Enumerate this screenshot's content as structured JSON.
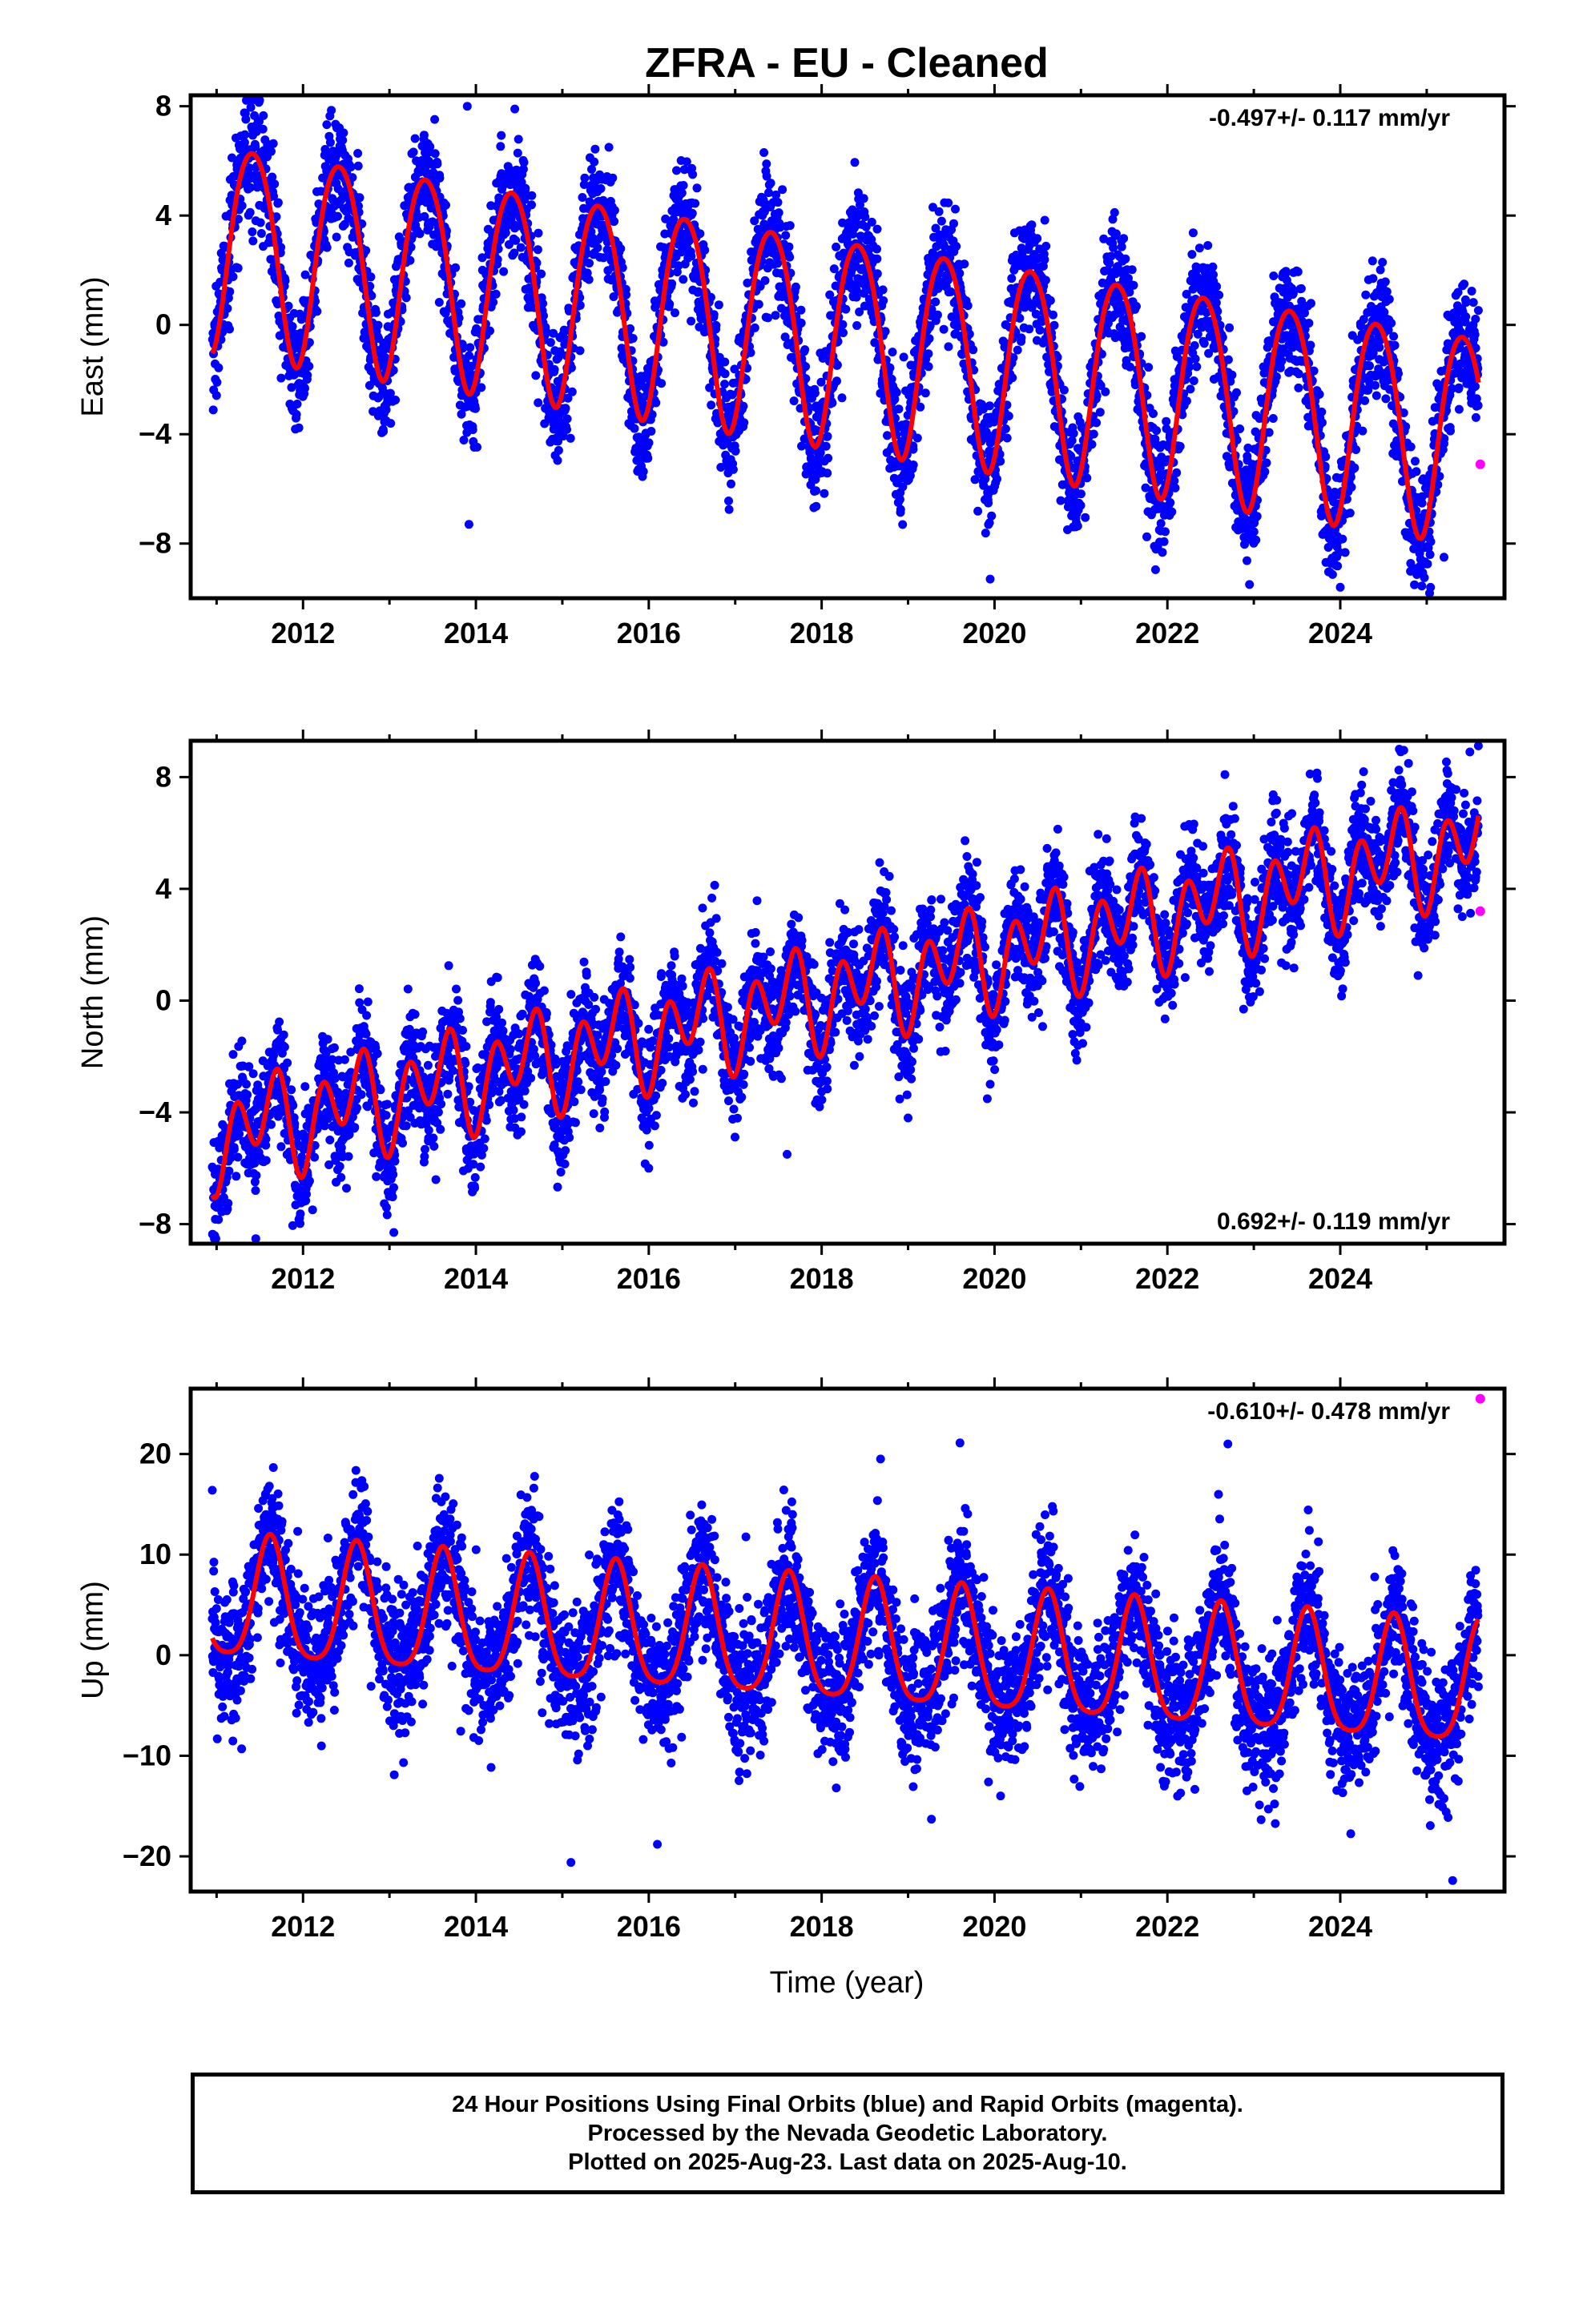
{
  "figure": {
    "title": "ZFRA  - EU - Cleaned",
    "x_label": "Time (year)",
    "footer_lines": [
      "24 Hour Positions Using Final Orbits (blue) and Rapid Orbits (magenta).",
      "Processed by the Nevada Geodetic Laboratory.",
      "Plotted on 2025-Aug-23. Last data on 2025-Aug-10."
    ]
  },
  "colors": {
    "final_orbits": "#0000ff",
    "rapid_orbits": "#ff00ff",
    "model_fit": "#ff0000",
    "frame": "#000000"
  },
  "chart_data": [
    {
      "type": "scatter",
      "name": "east",
      "ylabel": "East (mm)",
      "rate_text": "-0.497+/- 0.117 mm/yr",
      "rate_position": "top-right",
      "xlim": [
        2010.7,
        2025.9
      ],
      "ylim": [
        -10.0,
        8.4
      ],
      "xticks": [
        2012,
        2014,
        2016,
        2018,
        2020,
        2022,
        2024
      ],
      "yticks": [
        -8,
        -4,
        0,
        4,
        8
      ],
      "ytick_labels": [
        "−8",
        "−4",
        "0",
        "4",
        "8"
      ],
      "model": {
        "t0": 2010.95,
        "t1": 2025.6,
        "ref_year": 2018.0,
        "offset": -0.3,
        "trend_mm_per_yr": -0.48,
        "annual": {
          "amplitude": 3.8,
          "peak_year_fraction": 0.42
        },
        "semiannual": {
          "amplitude": 0.4,
          "peak_year_fraction": 0.18
        }
      },
      "scatter_sigma": 1.1,
      "rapid_points": [
        [
          2025.62,
          -5.1
        ]
      ],
      "outliers": [
        [
          2013.92,
          -7.3
        ],
        [
          2019.95,
          -9.3
        ],
        [
          2022.95,
          -9.5
        ],
        [
          2024.0,
          -9.6
        ],
        [
          2025.2,
          -8.5
        ],
        [
          2013.9,
          8.0
        ],
        [
          2014.45,
          7.9
        ]
      ]
    },
    {
      "type": "scatter",
      "name": "north",
      "ylabel": "North (mm)",
      "rate_text": "0.692+/- 0.119 mm/yr",
      "rate_position": "bottom-right",
      "xlim": [
        2010.7,
        2025.9
      ],
      "ylim": [
        -8.7,
        9.3
      ],
      "xticks": [
        2012,
        2014,
        2016,
        2018,
        2020,
        2022,
        2024
      ],
      "yticks": [
        -8,
        -4,
        0,
        4,
        8
      ],
      "ytick_labels": [
        "−8",
        "−4",
        "0",
        "4",
        "8"
      ],
      "model": {
        "t0": 2010.95,
        "t1": 2025.6,
        "ref_year": 2018.0,
        "offset": 0.2,
        "trend_mm_per_yr": 0.72,
        "annual": {
          "amplitude": 0.9,
          "peak_year_fraction": 0.55
        },
        "semiannual": {
          "amplitude": 1.4,
          "peak_year_fraction": 0.22
        }
      },
      "scatter_sigma": 1.0,
      "rapid_points": [
        [
          2025.62,
          3.2
        ]
      ],
      "outliers": [
        [
          2013.05,
          -8.3
        ],
        [
          2016.0,
          -6.0
        ],
        [
          2017.6,
          -5.5
        ],
        [
          2019.0,
          -4.2
        ],
        [
          2024.9,
          0.9
        ],
        [
          2025.5,
          8.9
        ]
      ]
    },
    {
      "type": "scatter",
      "name": "up",
      "ylabel": "Up (mm)",
      "rate_text": "-0.610+/- 0.478 mm/yr",
      "rate_position": "top-right",
      "xlim": [
        2010.7,
        2025.9
      ],
      "ylim": [
        -23.5,
        26.5
      ],
      "xticks": [
        2012,
        2014,
        2016,
        2018,
        2020,
        2022,
        2024
      ],
      "yticks": [
        -20,
        -10,
        0,
        10,
        20
      ],
      "ytick_labels": [
        "−20",
        "−10",
        "0",
        "10",
        "20"
      ],
      "model": {
        "t0": 2010.95,
        "t1": 2025.6,
        "ref_year": 2018.0,
        "offset": 1.0,
        "trend_mm_per_yr": -0.6,
        "annual": {
          "amplitude": 6.0,
          "peak_year_fraction": 0.62
        },
        "semiannual": {
          "amplitude": 1.2,
          "peak_year_fraction": 0.12
        }
      },
      "scatter_sigma": 3.4,
      "rapid_points": [
        [
          2025.62,
          25.5
        ]
      ],
      "outliers": [
        [
          2015.1,
          -20.6
        ],
        [
          2016.1,
          -18.8
        ],
        [
          2025.3,
          -22.4
        ],
        [
          2019.6,
          21.1
        ],
        [
          2022.7,
          21.0
        ],
        [
          2010.95,
          16.4
        ]
      ]
    }
  ]
}
